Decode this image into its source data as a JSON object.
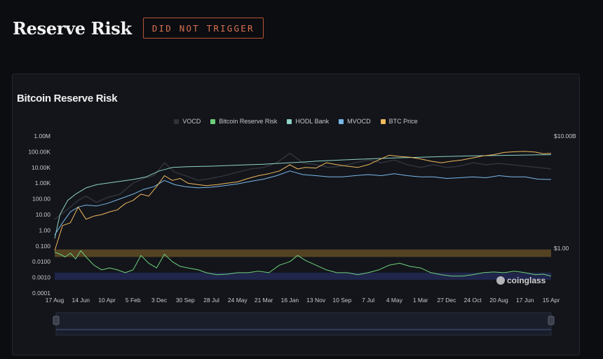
{
  "page": {
    "title": "Reserve Risk",
    "badge": "DID NOT TRIGGER",
    "badge_color": "#d8714f"
  },
  "chart_data": {
    "type": "line",
    "title": "Bitcoin Reserve Risk",
    "legend_position": "top-center",
    "watermark": "coinglass",
    "y_left": {
      "scale": "log",
      "tick_labels": [
        "1.00M",
        "100.00K",
        "10.00K",
        "1.00K",
        "100.00",
        "10.00",
        "1.00",
        "0.100",
        "0.0100",
        "0.0010",
        "0.0001"
      ],
      "range": [
        0.0001,
        1000000
      ]
    },
    "y_right": {
      "scale": "log",
      "tick_labels": [
        "$10.00B",
        "$1.00"
      ],
      "range": [
        0.0001,
        10000000000
      ]
    },
    "x_tick_labels": [
      "17 Aug",
      "14 Jun",
      "10 Apr",
      "5 Feb",
      "3 Dec",
      "30 Sep",
      "28 Jul",
      "24 May",
      "21 Mar",
      "16 Jan",
      "13 Nov",
      "10 Sep",
      "7 Jul",
      "4 May",
      "1 Mar",
      "27 Dec",
      "24 Oct",
      "20 Aug",
      "17 Jun",
      "15 Apr"
    ],
    "x_range": [
      0,
      19
    ],
    "bands": [
      {
        "name": "upper band",
        "range": [
          0.02,
          0.06
        ],
        "color": "#6b5327"
      },
      {
        "name": "lower band",
        "range": [
          0.0007,
          0.002
        ],
        "color": "#262b5c"
      }
    ],
    "series": [
      {
        "name": "VOCD",
        "color": "#30323a",
        "points": [
          [
            0,
            5
          ],
          [
            0.3,
            12
          ],
          [
            0.6,
            30
          ],
          [
            0.9,
            80
          ],
          [
            1.2,
            150
          ],
          [
            1.6,
            60
          ],
          [
            2,
            120
          ],
          [
            2.5,
            200
          ],
          [
            3,
            1000
          ],
          [
            3.4,
            2000
          ],
          [
            3.8,
            3000
          ],
          [
            4.2,
            20000
          ],
          [
            4.6,
            5000
          ],
          [
            5,
            3000
          ],
          [
            5.5,
            1500
          ],
          [
            6,
            2000
          ],
          [
            6.5,
            3000
          ],
          [
            7,
            5000
          ],
          [
            7.5,
            8000
          ],
          [
            8,
            10000
          ],
          [
            8.5,
            20000
          ],
          [
            9,
            80000
          ],
          [
            9.5,
            20000
          ],
          [
            10,
            15000
          ],
          [
            10.5,
            10000
          ],
          [
            11,
            12000
          ],
          [
            11.5,
            20000
          ],
          [
            12,
            30000
          ],
          [
            12.5,
            20000
          ],
          [
            13,
            30000
          ],
          [
            13.5,
            15000
          ],
          [
            14,
            10000
          ],
          [
            14.5,
            15000
          ],
          [
            15,
            10000
          ],
          [
            15.5,
            12000
          ],
          [
            16,
            20000
          ],
          [
            16.5,
            15000
          ],
          [
            17,
            18000
          ],
          [
            17.5,
            15000
          ],
          [
            18,
            12000
          ],
          [
            18.5,
            10000
          ],
          [
            19,
            8000
          ]
        ]
      },
      {
        "name": "Bitcoin Reserve Risk",
        "color": "#6ed07a",
        "points": [
          [
            0,
            0.04
          ],
          [
            0.2,
            0.03
          ],
          [
            0.4,
            0.02
          ],
          [
            0.6,
            0.035
          ],
          [
            0.8,
            0.015
          ],
          [
            1.0,
            0.05
          ],
          [
            1.2,
            0.02
          ],
          [
            1.5,
            0.006
          ],
          [
            1.8,
            0.003
          ],
          [
            2.1,
            0.004
          ],
          [
            2.4,
            0.003
          ],
          [
            2.7,
            0.002
          ],
          [
            3.0,
            0.003
          ],
          [
            3.3,
            0.025
          ],
          [
            3.6,
            0.008
          ],
          [
            3.9,
            0.004
          ],
          [
            4.2,
            0.03
          ],
          [
            4.5,
            0.01
          ],
          [
            4.8,
            0.005
          ],
          [
            5.1,
            0.004
          ],
          [
            5.5,
            0.003
          ],
          [
            5.8,
            0.002
          ],
          [
            6.2,
            0.0015
          ],
          [
            6.6,
            0.0016
          ],
          [
            7.0,
            0.002
          ],
          [
            7.4,
            0.002
          ],
          [
            7.8,
            0.0025
          ],
          [
            8.2,
            0.002
          ],
          [
            8.6,
            0.006
          ],
          [
            9.0,
            0.01
          ],
          [
            9.3,
            0.025
          ],
          [
            9.6,
            0.012
          ],
          [
            10.0,
            0.006
          ],
          [
            10.4,
            0.003
          ],
          [
            10.8,
            0.002
          ],
          [
            11.2,
            0.002
          ],
          [
            11.6,
            0.0015
          ],
          [
            12.0,
            0.002
          ],
          [
            12.4,
            0.003
          ],
          [
            12.8,
            0.006
          ],
          [
            13.2,
            0.008
          ],
          [
            13.6,
            0.005
          ],
          [
            14.0,
            0.004
          ],
          [
            14.4,
            0.002
          ],
          [
            14.8,
            0.0015
          ],
          [
            15.2,
            0.0012
          ],
          [
            15.6,
            0.0012
          ],
          [
            16.0,
            0.0015
          ],
          [
            16.4,
            0.002
          ],
          [
            16.8,
            0.0022
          ],
          [
            17.2,
            0.002
          ],
          [
            17.6,
            0.0025
          ],
          [
            18.0,
            0.002
          ],
          [
            18.4,
            0.0015
          ],
          [
            18.7,
            0.0016
          ],
          [
            19.0,
            0.0012
          ]
        ]
      },
      {
        "name": "HODL Bank",
        "color": "#8fd3c6",
        "points": [
          [
            0,
            0.3
          ],
          [
            0.2,
            10
          ],
          [
            0.5,
            80
          ],
          [
            0.8,
            200
          ],
          [
            1.2,
            500
          ],
          [
            1.6,
            800
          ],
          [
            2,
            1000
          ],
          [
            2.5,
            1300
          ],
          [
            3,
            1700
          ],
          [
            3.5,
            2500
          ],
          [
            4,
            6000
          ],
          [
            4.5,
            10000
          ],
          [
            5,
            11000
          ],
          [
            5.5,
            11500
          ],
          [
            6,
            12000
          ],
          [
            6.5,
            13000
          ],
          [
            7,
            14000
          ],
          [
            7.5,
            15000
          ],
          [
            8,
            16000
          ],
          [
            8.5,
            18000
          ],
          [
            9,
            20000
          ],
          [
            9.5,
            22000
          ],
          [
            10,
            25000
          ],
          [
            11,
            30000
          ],
          [
            12,
            35000
          ],
          [
            13,
            40000
          ],
          [
            14,
            45000
          ],
          [
            15,
            50000
          ],
          [
            16,
            55000
          ],
          [
            17,
            58000
          ],
          [
            18,
            62000
          ],
          [
            19,
            65000
          ]
        ]
      },
      {
        "name": "MVOCD",
        "color": "#7ab8e8",
        "points": [
          [
            0,
            0.5
          ],
          [
            0.3,
            3
          ],
          [
            0.6,
            15
          ],
          [
            0.9,
            30
          ],
          [
            1.2,
            40
          ],
          [
            1.6,
            35
          ],
          [
            2,
            50
          ],
          [
            2.5,
            100
          ],
          [
            3,
            200
          ],
          [
            3.4,
            400
          ],
          [
            3.8,
            600
          ],
          [
            4.2,
            1500
          ],
          [
            4.6,
            800
          ],
          [
            5,
            600
          ],
          [
            5.5,
            500
          ],
          [
            6,
            550
          ],
          [
            6.5,
            700
          ],
          [
            7,
            900
          ],
          [
            7.5,
            1300
          ],
          [
            8,
            1800
          ],
          [
            8.5,
            3000
          ],
          [
            9,
            6000
          ],
          [
            9.5,
            3500
          ],
          [
            10,
            3000
          ],
          [
            10.5,
            2500
          ],
          [
            11,
            2500
          ],
          [
            11.5,
            3000
          ],
          [
            12,
            3500
          ],
          [
            12.5,
            3000
          ],
          [
            13,
            4000
          ],
          [
            13.5,
            3000
          ],
          [
            14,
            2500
          ],
          [
            14.5,
            2500
          ],
          [
            15,
            2000
          ],
          [
            15.5,
            2200
          ],
          [
            16,
            2500
          ],
          [
            16.5,
            2200
          ],
          [
            17,
            3000
          ],
          [
            17.5,
            2500
          ],
          [
            18,
            2500
          ],
          [
            18.5,
            1800
          ],
          [
            19,
            1700
          ]
        ]
      },
      {
        "name": "BTC Price",
        "color": "#f0b95c",
        "points": [
          [
            0,
            0.05
          ],
          [
            0.3,
            2
          ],
          [
            0.6,
            3
          ],
          [
            0.9,
            30
          ],
          [
            1.2,
            5
          ],
          [
            1.5,
            8
          ],
          [
            1.8,
            10
          ],
          [
            2.1,
            15
          ],
          [
            2.4,
            20
          ],
          [
            2.7,
            50
          ],
          [
            3.0,
            80
          ],
          [
            3.3,
            200
          ],
          [
            3.6,
            150
          ],
          [
            3.9,
            600
          ],
          [
            4.2,
            3000
          ],
          [
            4.5,
            1500
          ],
          [
            4.8,
            2000
          ],
          [
            5.1,
            1000
          ],
          [
            5.5,
            800
          ],
          [
            5.8,
            700
          ],
          [
            6.2,
            800
          ],
          [
            6.6,
            1000
          ],
          [
            7.0,
            1200
          ],
          [
            7.4,
            2000
          ],
          [
            7.8,
            3000
          ],
          [
            8.2,
            4000
          ],
          [
            8.6,
            6000
          ],
          [
            9.0,
            15000
          ],
          [
            9.3,
            8000
          ],
          [
            9.6,
            10000
          ],
          [
            10.0,
            9000
          ],
          [
            10.4,
            20000
          ],
          [
            10.8,
            15000
          ],
          [
            11.2,
            12000
          ],
          [
            11.6,
            10000
          ],
          [
            12.0,
            15000
          ],
          [
            12.4,
            30000
          ],
          [
            12.8,
            60000
          ],
          [
            13.2,
            50000
          ],
          [
            13.6,
            45000
          ],
          [
            14.0,
            35000
          ],
          [
            14.4,
            25000
          ],
          [
            14.8,
            20000
          ],
          [
            15.2,
            25000
          ],
          [
            15.6,
            30000
          ],
          [
            16.0,
            40000
          ],
          [
            16.4,
            55000
          ],
          [
            16.8,
            65000
          ],
          [
            17.2,
            90000
          ],
          [
            17.6,
            100000
          ],
          [
            18.0,
            105000
          ],
          [
            18.4,
            95000
          ],
          [
            18.7,
            75000
          ],
          [
            19.0,
            80000
          ]
        ]
      }
    ]
  }
}
